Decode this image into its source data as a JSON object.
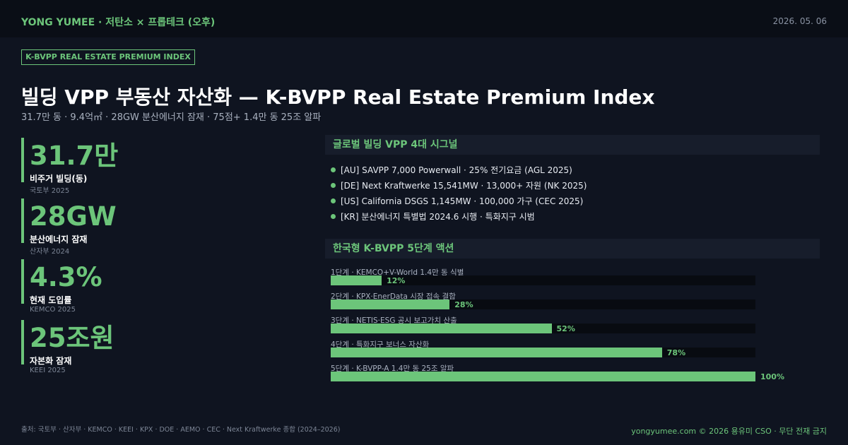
{
  "header": {
    "brand": "YONG YUMEE  ·  저탄소 × 프롭테크 (오후)",
    "date": "2026. 05. 06"
  },
  "badge": "K-BVPP REAL ESTATE PREMIUM INDEX",
  "title": "빌딩 VPP 부동산 자산화 — K-BVPP Real Estate Premium Index",
  "subtitle": "31.7만 동 · 9.4억㎡ · 28GW 분산에너지 잠재 · 75점+ 1.4만 동 25조 알파",
  "kpis": [
    {
      "value": "31.7만",
      "label": "비주거 빌딩(동)",
      "source": "국토부 2025"
    },
    {
      "value": "28GW",
      "label": "분산에너지 잠재",
      "source": "산자부 2024"
    },
    {
      "value": "4.3%",
      "label": "현재 도입률",
      "source": "KEMCO 2025"
    },
    {
      "value": "25조원",
      "label": "자본화 잠재",
      "source": "KEEI 2025"
    }
  ],
  "signals": {
    "heading": "글로벌 빌딩 VPP 4대 시그널",
    "items": [
      "[AU]  SAVPP 7,000 Powerwall · 25% 전기요금 (AGL 2025)",
      "[DE]  Next Kraftwerke 15,541MW · 13,000+ 자원 (NK 2025)",
      "[US]  California DSGS 1,145MW · 100,000 가구 (CEC 2025)",
      "[KR]  분산에너지 특별법 2024.6 시행 · 특화지구 시범"
    ]
  },
  "actions": {
    "heading": "한국형 K-BVPP 5단계 액션",
    "xlim": [
      0,
      100
    ],
    "items": [
      {
        "label": "1단계 · KEMCO+V-World 1.4만 동 식별",
        "value": 12,
        "value_label": "12%"
      },
      {
        "label": "2단계 · KPX·EnerData 시장 접속 결합",
        "value": 28,
        "value_label": "28%"
      },
      {
        "label": "3단계 · NETIS·ESG 공시 보고가치 산출",
        "value": 52,
        "value_label": "52%"
      },
      {
        "label": "4단계 · 특화지구 보너스 자산화",
        "value": 78,
        "value_label": "78%"
      },
      {
        "label": "5단계 · K-BVPP-A 1.4만 동 25조 알파",
        "value": 100,
        "value_label": "100%"
      }
    ]
  },
  "footer": {
    "source": "출처: 국토부 · 산자부 · KEMCO · KEEI · KPX · DOE · AEMO · CEC · Next Kraftwerke 종합 (2024–2026)",
    "copyright": "yongyumee.com © 2026 용유미 CSO · 무단 전재 금지"
  }
}
